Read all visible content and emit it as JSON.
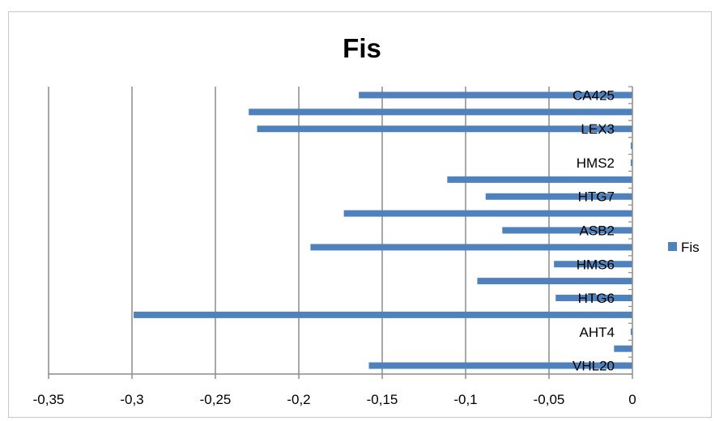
{
  "chart_data": {
    "type": "bar",
    "orientation": "horizontal",
    "title": "Fis",
    "xlabel": "",
    "ylabel": "",
    "xlim": [
      -0.35,
      0
    ],
    "x_ticks": [
      -0.35,
      -0.3,
      -0.25,
      -0.2,
      -0.15,
      -0.1,
      -0.05,
      0
    ],
    "x_tick_labels": [
      "-0,35",
      "-0,3",
      "-0,25",
      "-0,2",
      "-0,15",
      "-0,1",
      "-0,05",
      "0"
    ],
    "grid": true,
    "legend_position": "right",
    "categories": [
      "CA425",
      "",
      "LEX3",
      "",
      "HMS2",
      "",
      "HTG7",
      "",
      "ASB2",
      "",
      "HMS6",
      "",
      "HTG6",
      "",
      "AHT4",
      "",
      "VHL20"
    ],
    "series": [
      {
        "name": "Fis",
        "color": "#4f81bd",
        "values": [
          -0.164,
          -0.23,
          -0.225,
          -0.001,
          -0.001,
          -0.111,
          -0.088,
          -0.173,
          -0.078,
          -0.193,
          -0.047,
          -0.093,
          -0.046,
          -0.299,
          -0.001,
          -0.011,
          -0.158
        ]
      }
    ]
  }
}
